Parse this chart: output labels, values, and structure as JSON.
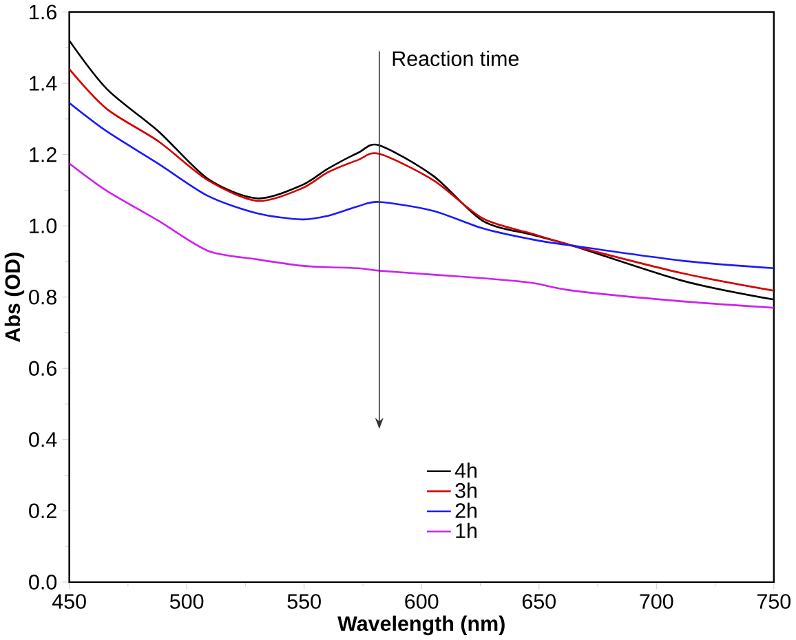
{
  "chart_data": {
    "type": "line",
    "xlabel": "Wavelength (nm)",
    "ylabel": "Abs (OD)",
    "xlim": [
      450,
      750
    ],
    "ylim": [
      0,
      1.6
    ],
    "xticks": [
      450,
      500,
      550,
      600,
      650,
      700,
      750
    ],
    "yticks": [
      {
        "value": 0,
        "label": "0.0"
      },
      0.2,
      0.4,
      0.6,
      0.8,
      {
        "value": 1,
        "label": "1.0"
      },
      1.2,
      1.4,
      1.6
    ],
    "x": [
      450,
      466,
      488,
      509,
      530,
      549,
      560,
      573,
      582,
      605,
      626,
      647,
      664.5,
      711,
      750
    ],
    "series": [
      {
        "name": "4h",
        "color": "#000000",
        "values": [
          1.52,
          1.384,
          1.265,
          1.132,
          1.077,
          1.114,
          1.16,
          1.205,
          1.226,
          1.14,
          1.014,
          0.975,
          0.944,
          0.846,
          0.793
        ]
      },
      {
        "name": "3h",
        "color": "#d40000",
        "values": [
          1.44,
          1.328,
          1.237,
          1.128,
          1.07,
          1.105,
          1.15,
          1.185,
          1.202,
          1.128,
          1.021,
          0.978,
          0.944,
          0.867,
          0.818
        ]
      },
      {
        "name": "2h",
        "color": "#1a1aff",
        "values": [
          1.345,
          1.265,
          1.174,
          1.084,
          1.035,
          1.018,
          1.028,
          1.055,
          1.067,
          1.042,
          0.993,
          0.962,
          0.944,
          0.902,
          0.881
        ]
      },
      {
        "name": "1h",
        "color": "#cc22ee",
        "values": [
          1.175,
          1.098,
          1.014,
          0.93,
          0.906,
          0.888,
          0.884,
          0.881,
          0.874,
          0.863,
          0.853,
          0.84,
          0.818,
          0.788,
          0.77
        ]
      }
    ],
    "annotations": [
      "Reaction time"
    ],
    "legend": "bottom",
    "marker": "none",
    "line_style": "solid"
  }
}
